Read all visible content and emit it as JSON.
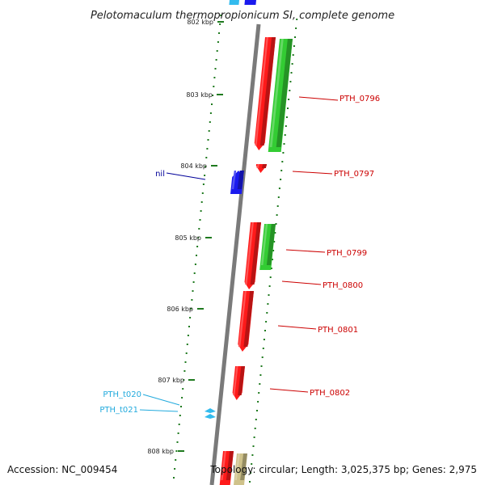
{
  "title": "Pelotomaculum thermopropionicum SI, complete genome",
  "footer": {
    "accession": "Accession: NC_009454",
    "topology": "Topology: circular; Length: 3,025,375 bp; Genes: 2,975"
  },
  "colors": {
    "backbone": "#7a7a7a",
    "cds_red": "#ff1a1a",
    "cds_green": "#33cc33",
    "cds_blue": "#1a1aee",
    "trna_cyan": "#33bbee",
    "misc_tan": "#cfc28a",
    "tick": "#1f7a1f",
    "label_red": "#cc0000",
    "label_blue": "#000099",
    "label_cyan": "#22aadd"
  },
  "scale_ticks": [
    {
      "label": "802 kbp"
    },
    {
      "label": "803 kbp"
    },
    {
      "label": "804 kbp"
    },
    {
      "label": "805 kbp"
    },
    {
      "label": "806 kbp"
    },
    {
      "label": "807 kbp"
    },
    {
      "label": "808 kbp"
    }
  ],
  "gene_labels": [
    {
      "text": "PTH_0796",
      "color": "label_red"
    },
    {
      "text": "PTH_0797",
      "color": "label_red"
    },
    {
      "text": "nil",
      "color": "label_blue"
    },
    {
      "text": "PTH_0799",
      "color": "label_red"
    },
    {
      "text": "PTH_0800",
      "color": "label_red"
    },
    {
      "text": "PTH_0801",
      "color": "label_red"
    },
    {
      "text": "PTH_0802",
      "color": "label_red"
    },
    {
      "text": "PTH_t020",
      "color": "label_cyan"
    },
    {
      "text": "PTH_t021",
      "color": "label_cyan"
    }
  ]
}
